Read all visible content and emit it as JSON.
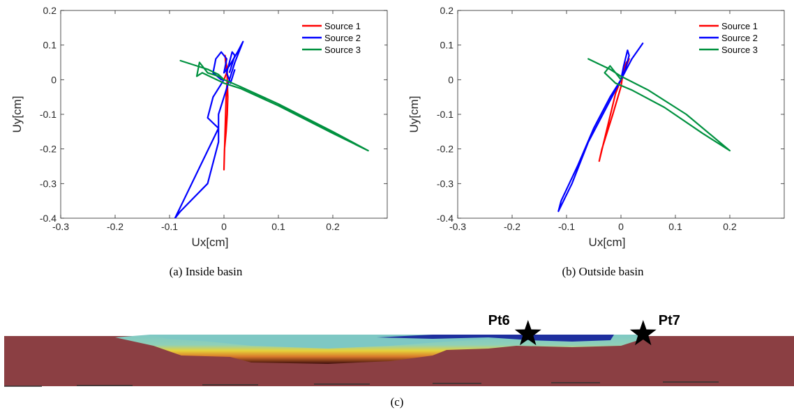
{
  "charts": [
    {
      "id": "a",
      "caption": "(a) Inside basin",
      "type": "line",
      "xlabel": "Ux[cm]",
      "ylabel": "Uy[cm]",
      "xlim": [
        -0.3,
        0.3
      ],
      "ylim": [
        -0.4,
        0.2
      ],
      "xticks": [
        "-0.3",
        "-0.2",
        "-0.1",
        "0",
        "0.1",
        "0.2"
      ],
      "yticks": [
        "0.2",
        "0.1",
        "0",
        "-0.1",
        "-0.2",
        "-0.3",
        "-0.4"
      ],
      "legend_position": "top-right",
      "series": [
        {
          "name": "Source 1",
          "color": "#ff0000",
          "x": [
            0.0,
            0.005,
            0.003,
            0.002,
            0.006,
            0.006,
            0.007,
            0.006,
            0.004,
            0.001,
            0.0,
            0.002,
            0.004,
            0.006
          ],
          "y": [
            0.0,
            0.02,
            0.05,
            0.07,
            0.03,
            0.0,
            -0.05,
            -0.1,
            -0.15,
            -0.2,
            -0.26,
            -0.15,
            -0.05,
            0.0
          ]
        },
        {
          "name": "Source 2",
          "color": "#0000ff",
          "x": [
            0.0,
            -0.02,
            -0.03,
            -0.01,
            -0.09,
            -0.08,
            -0.03,
            -0.01,
            -0.01,
            0.01,
            0.02,
            0.035,
            0.025,
            0.01,
            0.0,
            0.005,
            -0.005,
            -0.015,
            -0.02,
            -0.005,
            0.0
          ],
          "y": [
            0.0,
            -0.05,
            -0.11,
            -0.14,
            -0.4,
            -0.38,
            -0.3,
            -0.18,
            -0.1,
            0.0,
            0.05,
            0.11,
            0.08,
            0.04,
            0.02,
            0.06,
            0.08,
            0.06,
            0.02,
            0.0,
            0.0
          ],
          "x2": [
            0.01,
            0.02,
            0.015,
            0.005,
            0.012,
            0.02
          ],
          "y2": [
            0.02,
            0.07,
            0.08,
            0.02,
            -0.01,
            0.03
          ]
        },
        {
          "name": "Source 3",
          "color": "#00913f",
          "x": [
            -0.08,
            -0.05,
            -0.03,
            -0.01,
            0.0,
            0.03,
            0.1,
            0.2,
            0.265,
            0.2,
            0.1,
            0.03,
            0.0,
            -0.04,
            -0.05,
            -0.045,
            -0.03,
            -0.01,
            0.0
          ],
          "y": [
            0.055,
            0.04,
            0.03,
            0.015,
            0.0,
            -0.02,
            -0.07,
            -0.15,
            -0.205,
            -0.155,
            -0.075,
            -0.025,
            -0.01,
            0.02,
            0.01,
            0.05,
            0.02,
            0.01,
            0.0
          ]
        }
      ]
    },
    {
      "id": "b",
      "caption": "(b) Outside basin",
      "type": "line",
      "xlabel": "Ux[cm]",
      "ylabel": "Uy[cm]",
      "xlim": [
        -0.3,
        0.3
      ],
      "ylim": [
        -0.4,
        0.2
      ],
      "xticks": [
        "-0.3",
        "-0.2",
        "-0.1",
        "0",
        "0.1",
        "0.2"
      ],
      "yticks": [
        "0.2",
        "0.1",
        "0",
        "-0.1",
        "-0.2",
        "-0.3",
        "-0.4"
      ],
      "legend_position": "top-right",
      "series": [
        {
          "name": "Source 1",
          "color": "#ff0000",
          "x": [
            0.0,
            0.01,
            0.015,
            0.005,
            -0.01,
            -0.04,
            -0.035,
            -0.015,
            0.0,
            0.005,
            0.01,
            0.0
          ],
          "y": [
            0.0,
            0.05,
            0.06,
            0.02,
            -0.04,
            -0.235,
            -0.2,
            -0.1,
            -0.02,
            0.03,
            0.05,
            0.0
          ]
        },
        {
          "name": "Source 2",
          "color": "#0000ff",
          "x": [
            0.04,
            0.02,
            0.01,
            0.0,
            -0.02,
            -0.06,
            -0.09,
            -0.115,
            -0.11,
            -0.08,
            -0.05,
            -0.02,
            0.0,
            0.005,
            0.012,
            0.015,
            0.008,
            0.0
          ],
          "y": [
            0.105,
            0.06,
            0.03,
            0.0,
            -0.06,
            -0.18,
            -0.3,
            -0.38,
            -0.35,
            -0.25,
            -0.14,
            -0.05,
            0.0,
            0.04,
            0.085,
            0.07,
            0.03,
            0.0
          ]
        },
        {
          "name": "Source 3",
          "color": "#00913f",
          "x": [
            -0.06,
            -0.04,
            -0.02,
            0.0,
            0.05,
            0.12,
            0.2,
            0.15,
            0.08,
            0.02,
            -0.01,
            -0.03,
            -0.02,
            0.0
          ],
          "y": [
            0.06,
            0.045,
            0.03,
            0.01,
            -0.03,
            -0.1,
            -0.205,
            -0.155,
            -0.08,
            -0.03,
            -0.01,
            0.02,
            0.04,
            0.0
          ]
        }
      ]
    }
  ],
  "section": {
    "caption": "(c)",
    "markers": [
      {
        "label": "Pt6",
        "position": 0.665
      },
      {
        "label": "Pt7",
        "position": 0.81
      }
    ],
    "colors": {
      "rock": "#8b3f43",
      "cyan": "#7ec8c4",
      "blue": "#1e2f9e",
      "yellow": "#e6d23a",
      "orange": "#d97a2b",
      "dark": "#3d0c0c"
    }
  }
}
